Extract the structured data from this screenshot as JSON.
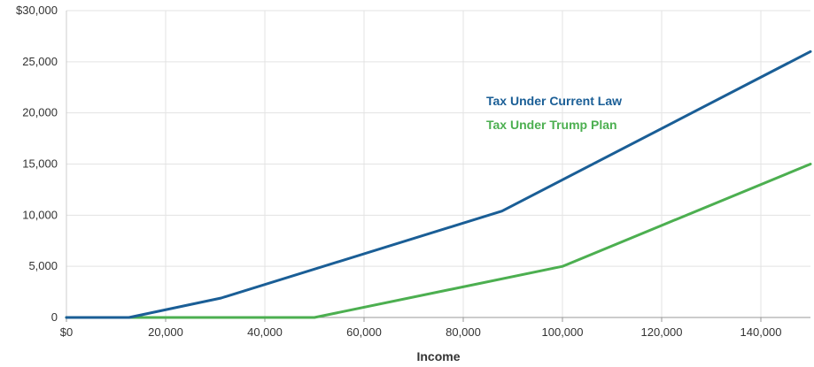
{
  "chart_data": {
    "type": "line",
    "title": "",
    "xlabel": "Income",
    "ylabel": "",
    "xlim": [
      0,
      150000
    ],
    "ylim": [
      0,
      30000
    ],
    "x_ticks": [
      0,
      20000,
      40000,
      60000,
      80000,
      100000,
      120000,
      140000
    ],
    "x_tick_labels": [
      "$0",
      "20,000",
      "40,000",
      "60,000",
      "80,000",
      "100,000",
      "120,000",
      "140,000"
    ],
    "y_ticks": [
      0,
      5000,
      10000,
      15000,
      20000,
      25000,
      30000
    ],
    "y_tick_labels": [
      "0",
      "5,000",
      "10,000",
      "15,000",
      "20,000",
      "25,000",
      "$30,000"
    ],
    "grid": true,
    "legend_position": "upper-right inside plot, as line labels",
    "series": [
      {
        "name": "Tax Under Current Law",
        "color": "#1a5e96",
        "points": [
          [
            0,
            0
          ],
          [
            12600,
            0
          ],
          [
            31200,
            1900
          ],
          [
            87800,
            10400
          ],
          [
            150000,
            26000
          ]
        ]
      },
      {
        "name": "Tax Under Trump Plan",
        "color": "#4caf50",
        "points": [
          [
            0,
            0
          ],
          [
            50000,
            0
          ],
          [
            100000,
            5000
          ],
          [
            150000,
            15000
          ]
        ]
      }
    ]
  }
}
